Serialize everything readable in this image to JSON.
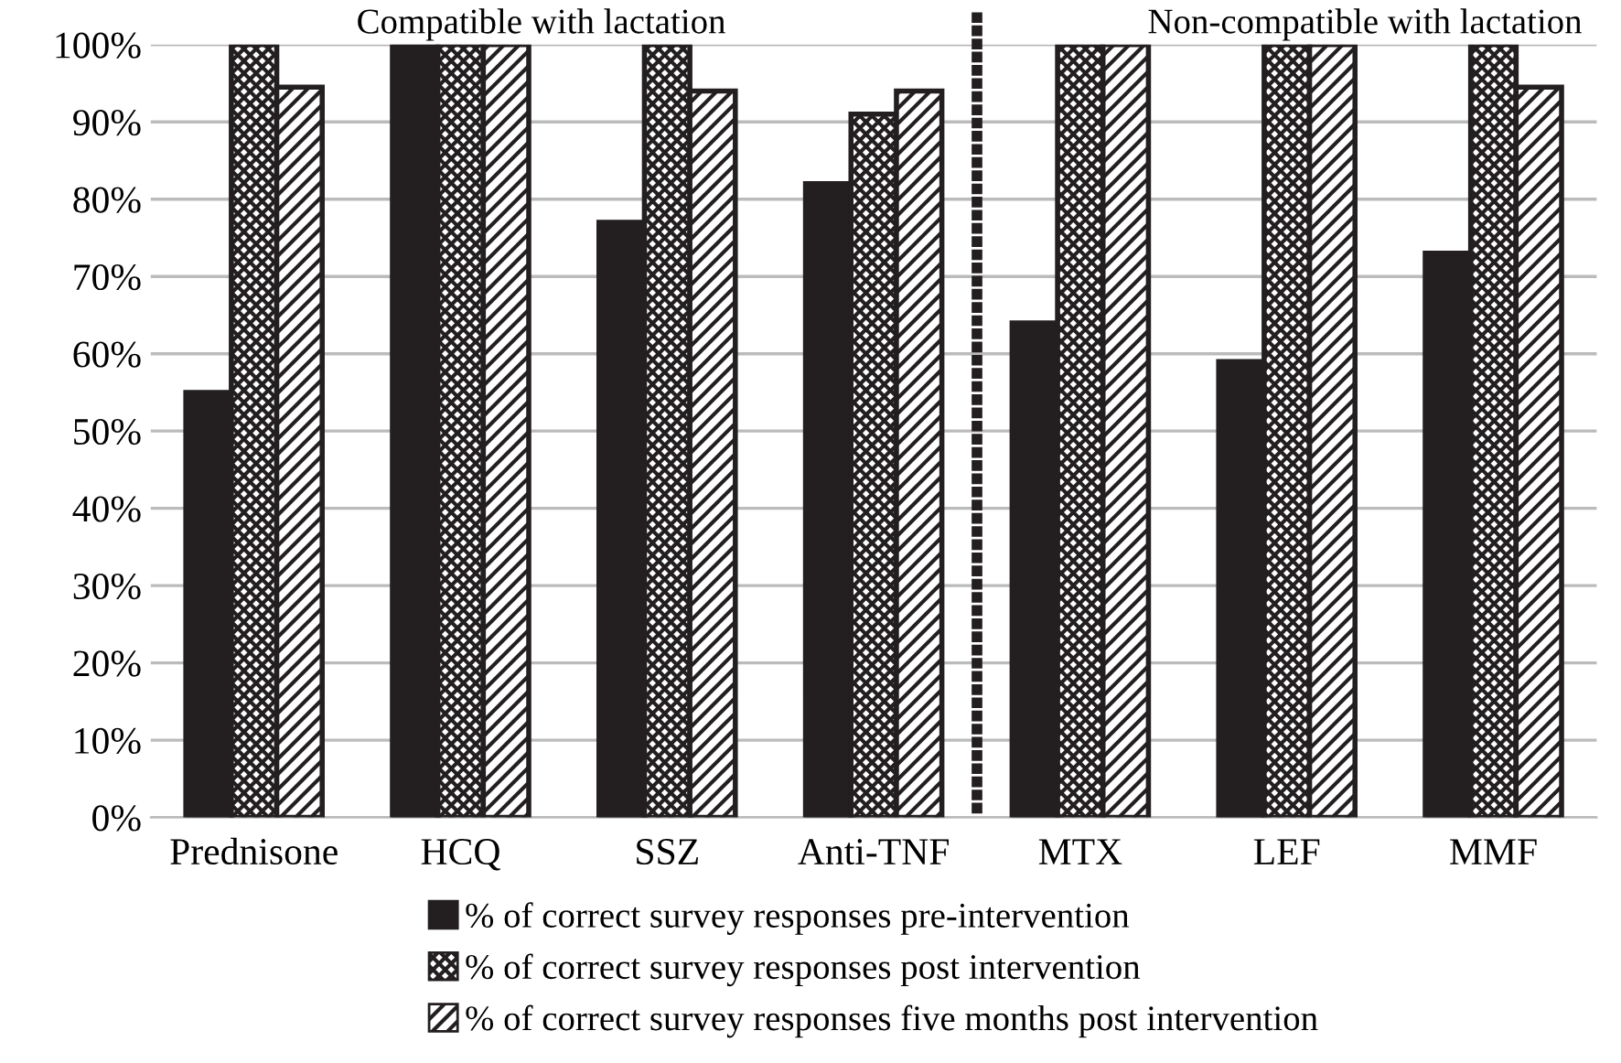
{
  "chart_data": {
    "type": "bar",
    "categories": [
      "Prednisone",
      "HCQ",
      "SSZ",
      "Anti-TNF",
      "MTX",
      "LEF",
      "MMF"
    ],
    "series": [
      {
        "name": "% of correct survey responses pre-intervention",
        "color": "#231f20",
        "values": [
          55,
          100,
          77,
          82,
          64,
          59,
          73
        ]
      },
      {
        "name": "% of correct survey responses post intervention",
        "color": "#231f20",
        "values": [
          100,
          100,
          100,
          91,
          100,
          100,
          100
        ]
      },
      {
        "name": "% of correct survey responses five months post intervention",
        "color": "#231f20",
        "values": [
          94.5,
          100,
          94,
          94,
          100,
          100,
          94.5
        ]
      }
    ],
    "ylim": [
      0,
      100
    ],
    "yticks": [
      {
        "value": 0,
        "label": "0%"
      },
      {
        "value": 10,
        "label": "10%"
      },
      {
        "value": 20,
        "label": "20%"
      },
      {
        "value": 30,
        "label": "30%"
      },
      {
        "value": 40,
        "label": "40%"
      },
      {
        "value": 50,
        "label": "50%"
      },
      {
        "value": 60,
        "label": "60%"
      },
      {
        "value": 70,
        "label": "70%"
      },
      {
        "value": 80,
        "label": "80%"
      },
      {
        "value": 90,
        "label": "90%"
      },
      {
        "value": 100,
        "label": "100%"
      }
    ],
    "grid": "y",
    "legend": "bottom",
    "annotations": [
      "Compatible with lactation",
      "Non-compatible with lactation"
    ]
  }
}
